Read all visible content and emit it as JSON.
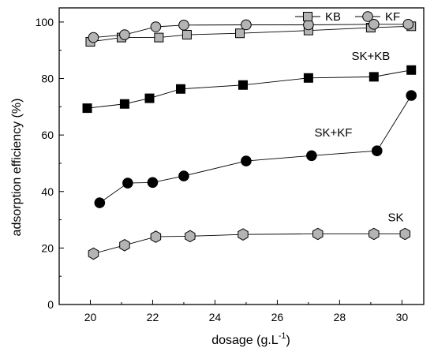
{
  "chart_data": {
    "type": "scatter",
    "xlabel": "dosage (g.L",
    "xlabel_sup": "-1",
    "xlabel_close": ")",
    "ylabel": "adsorption efficiency (%)",
    "xlim": [
      19,
      30.7
    ],
    "ylim": [
      0,
      105
    ],
    "xticks": [
      "20",
      "22",
      "24",
      "26",
      "28",
      "30"
    ],
    "yticks": [
      "0",
      "20",
      "40",
      "60",
      "80",
      "100"
    ],
    "legend_position": "top-right",
    "series": [
      {
        "name": "KB",
        "marker": "square",
        "fill": "#b4b4b4",
        "x": [
          20.0,
          21.0,
          22.2,
          23.1,
          24.8,
          27.0,
          29.0,
          30.3
        ],
        "y": [
          93,
          94.5,
          94.5,
          95.5,
          96,
          97,
          98,
          98.5
        ]
      },
      {
        "name": "KF",
        "marker": "circle",
        "fill": "#b4b4b4",
        "x": [
          20.1,
          21.1,
          22.1,
          23.0,
          25.0,
          27.0,
          29.1,
          30.2
        ],
        "y": [
          94.5,
          95.5,
          98.3,
          98.9,
          99,
          99,
          99.2,
          99.2
        ]
      },
      {
        "name": "SK+KB",
        "marker": "square",
        "fill": "#000000",
        "x": [
          19.9,
          21.1,
          21.9,
          22.9,
          24.9,
          27.0,
          29.1,
          30.3
        ],
        "y": [
          69.5,
          71,
          73,
          76.3,
          77.7,
          80.2,
          80.6,
          83
        ]
      },
      {
        "name": "SK+KF",
        "marker": "circle",
        "fill": "#000000",
        "x": [
          20.3,
          21.2,
          22.0,
          23.0,
          25.0,
          27.1,
          29.2,
          30.3
        ],
        "y": [
          36,
          43,
          43.2,
          45.5,
          50.8,
          52.7,
          54.4,
          74
        ]
      },
      {
        "name": "SK",
        "marker": "hexagon",
        "fill": "#b4b4b4",
        "x": [
          20.1,
          21.1,
          22.1,
          23.2,
          24.9,
          27.3,
          29.1,
          30.1
        ],
        "y": [
          18,
          21,
          24,
          24.2,
          24.8,
          25,
          25,
          25
        ]
      }
    ],
    "annotations": [
      {
        "text": "SK+KB",
        "x": 29.0,
        "y": 86.5
      },
      {
        "text": "SK+KF",
        "x": 27.8,
        "y": 59.5
      },
      {
        "text": "SK",
        "x": 29.8,
        "y": 29.5
      }
    ],
    "legend": [
      {
        "label": "KB",
        "series": 0
      },
      {
        "label": "KF",
        "series": 1
      }
    ]
  }
}
